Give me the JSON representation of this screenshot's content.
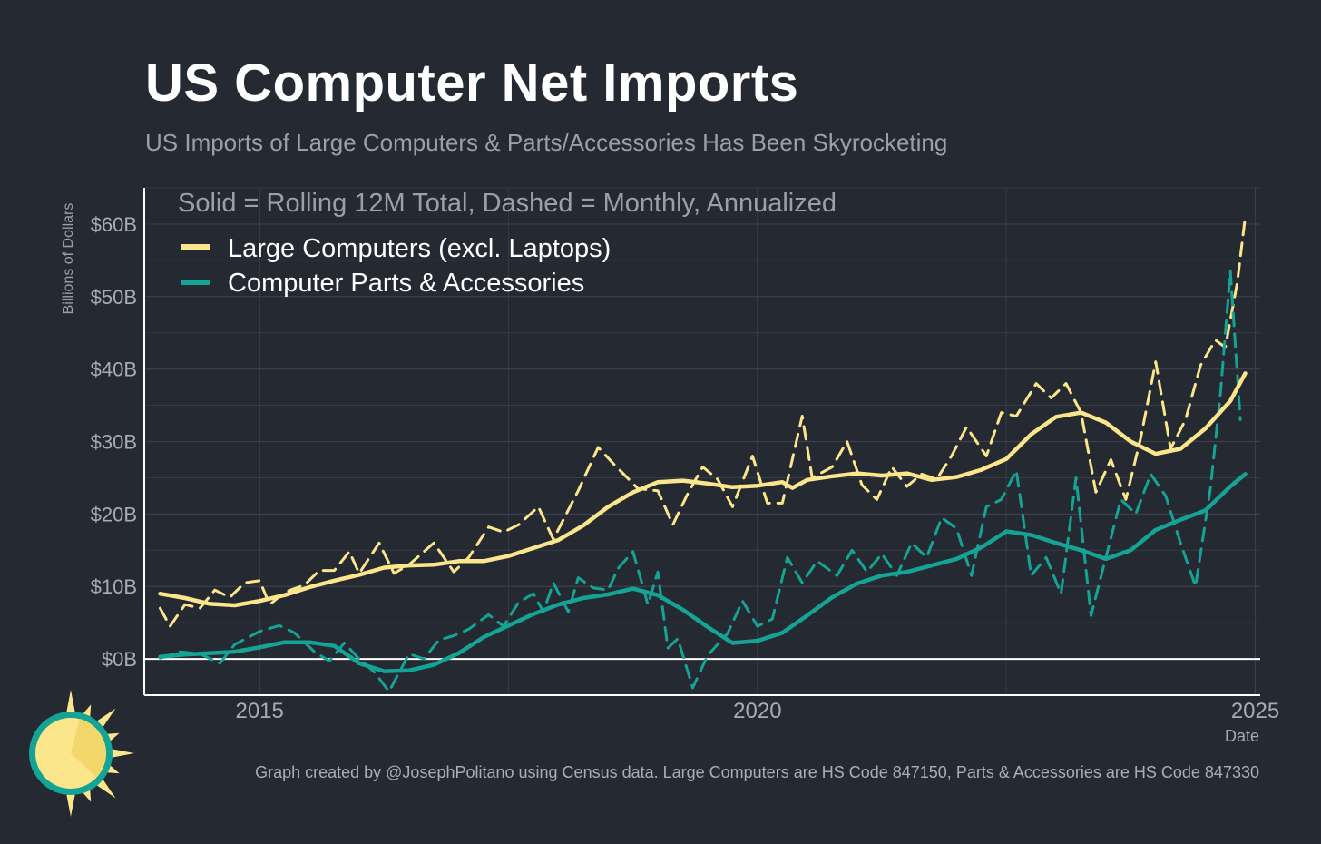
{
  "header": {
    "title": "US Computer Net Imports",
    "subtitle": "US Imports of Large Computers & Parts/Accessories Has Been Skyrocketing"
  },
  "footer": {
    "caption": "Graph created by @JosephPolitano using Census data. Large Computers are HS Code 847150, Parts & Accessories are HS Code 847330"
  },
  "colors": {
    "background": "#252932",
    "large_computers": "#fce68c",
    "parts_accessories": "#14a394",
    "grid": "#3a3f49",
    "axis_text": "#a7acb4",
    "zero_line": "#ffffff"
  },
  "chart_data": {
    "type": "line",
    "title": "US Computer Net Imports",
    "subtitle": "US Imports of Large Computers & Parts/Accessories Has Been Skyrocketing",
    "annotation": "Solid = Rolling 12M Total, Dashed = Monthly, Annualized",
    "xlabel": "Date",
    "ylabel": "Billions of Dollars",
    "xlim": [
      2013.85,
      2025.05
    ],
    "ylim": [
      -5,
      65
    ],
    "x_ticks": [
      2015,
      2020,
      2025
    ],
    "x_tick_labels": [
      "2015",
      "2020",
      "2025"
    ],
    "y_ticks": [
      0,
      10,
      20,
      30,
      40,
      50,
      60
    ],
    "y_tick_labels": [
      "$0B",
      "$10B",
      "$20B",
      "$30B",
      "$40B",
      "$50B",
      "$60B"
    ],
    "grid": true,
    "legend_position": "top-left",
    "series": [
      {
        "name": "Large Computers (excl. Laptops)",
        "style": "solid",
        "color": "#fce68c",
        "points": [
          [
            2014.0,
            9.0
          ],
          [
            2014.25,
            8.4
          ],
          [
            2014.5,
            7.6
          ],
          [
            2014.75,
            7.4
          ],
          [
            2015.0,
            8.0
          ],
          [
            2015.25,
            8.8
          ],
          [
            2015.5,
            9.9
          ],
          [
            2015.75,
            10.8
          ],
          [
            2016.0,
            11.6
          ],
          [
            2016.25,
            12.6
          ],
          [
            2016.5,
            12.9
          ],
          [
            2016.75,
            13.0
          ],
          [
            2017.0,
            13.5
          ],
          [
            2017.25,
            13.5
          ],
          [
            2017.5,
            14.2
          ],
          [
            2017.75,
            15.3
          ],
          [
            2018.0,
            16.4
          ],
          [
            2018.25,
            18.4
          ],
          [
            2018.5,
            21.0
          ],
          [
            2018.75,
            23.0
          ],
          [
            2019.0,
            24.4
          ],
          [
            2019.25,
            24.6
          ],
          [
            2019.5,
            24.2
          ],
          [
            2019.75,
            23.7
          ],
          [
            2020.0,
            23.9
          ],
          [
            2020.25,
            24.4
          ],
          [
            2020.35,
            23.6
          ],
          [
            2020.5,
            24.7
          ],
          [
            2020.75,
            25.2
          ],
          [
            2021.0,
            25.6
          ],
          [
            2021.25,
            25.3
          ],
          [
            2021.5,
            25.6
          ],
          [
            2021.75,
            24.7
          ],
          [
            2022.0,
            25.1
          ],
          [
            2022.25,
            26.1
          ],
          [
            2022.5,
            27.6
          ],
          [
            2022.75,
            31.0
          ],
          [
            2023.0,
            33.4
          ],
          [
            2023.25,
            34.0
          ],
          [
            2023.5,
            32.6
          ],
          [
            2023.75,
            30.0
          ],
          [
            2024.0,
            28.3
          ],
          [
            2024.25,
            29.0
          ],
          [
            2024.5,
            31.8
          ],
          [
            2024.75,
            35.6
          ],
          [
            2024.9,
            39.4
          ]
        ]
      },
      {
        "name": "Computer Parts & Accessories",
        "style": "solid",
        "color": "#14a394",
        "points": [
          [
            2014.0,
            0.3
          ],
          [
            2014.25,
            0.6
          ],
          [
            2014.5,
            0.8
          ],
          [
            2014.75,
            1.0
          ],
          [
            2015.0,
            1.6
          ],
          [
            2015.25,
            2.3
          ],
          [
            2015.5,
            2.3
          ],
          [
            2015.75,
            1.8
          ],
          [
            2016.0,
            -0.6
          ],
          [
            2016.25,
            -1.7
          ],
          [
            2016.5,
            -1.6
          ],
          [
            2016.75,
            -0.8
          ],
          [
            2017.0,
            0.8
          ],
          [
            2017.25,
            3.0
          ],
          [
            2017.5,
            4.6
          ],
          [
            2017.75,
            6.2
          ],
          [
            2018.0,
            7.5
          ],
          [
            2018.25,
            8.4
          ],
          [
            2018.5,
            8.9
          ],
          [
            2018.75,
            9.7
          ],
          [
            2019.0,
            8.8
          ],
          [
            2019.25,
            6.8
          ],
          [
            2019.5,
            4.4
          ],
          [
            2019.75,
            2.2
          ],
          [
            2020.0,
            2.5
          ],
          [
            2020.25,
            3.6
          ],
          [
            2020.5,
            6.0
          ],
          [
            2020.75,
            8.5
          ],
          [
            2021.0,
            10.4
          ],
          [
            2021.25,
            11.5
          ],
          [
            2021.5,
            12.0
          ],
          [
            2021.75,
            12.9
          ],
          [
            2022.0,
            13.8
          ],
          [
            2022.25,
            15.4
          ],
          [
            2022.5,
            17.6
          ],
          [
            2022.75,
            17.1
          ],
          [
            2023.0,
            16.0
          ],
          [
            2023.25,
            15.0
          ],
          [
            2023.5,
            13.8
          ],
          [
            2023.75,
            15.0
          ],
          [
            2024.0,
            17.8
          ],
          [
            2024.25,
            19.2
          ],
          [
            2024.5,
            20.5
          ],
          [
            2024.75,
            23.8
          ],
          [
            2024.9,
            25.5
          ]
        ]
      },
      {
        "name": "Large Computers (excl. Laptops)",
        "style": "dashed",
        "color": "#fce68c",
        "points": [
          [
            2014.0,
            7.0
          ],
          [
            2014.1,
            4.5
          ],
          [
            2014.25,
            7.5
          ],
          [
            2014.4,
            7.0
          ],
          [
            2014.55,
            9.5
          ],
          [
            2014.7,
            8.5
          ],
          [
            2014.85,
            10.5
          ],
          [
            2015.0,
            10.8
          ],
          [
            2015.1,
            7.5
          ],
          [
            2015.25,
            9.2
          ],
          [
            2015.45,
            10.2
          ],
          [
            2015.6,
            12.2
          ],
          [
            2015.75,
            12.2
          ],
          [
            2015.9,
            14.8
          ],
          [
            2016.0,
            11.8
          ],
          [
            2016.2,
            16.0
          ],
          [
            2016.35,
            11.8
          ],
          [
            2016.5,
            13.0
          ],
          [
            2016.75,
            16.0
          ],
          [
            2016.95,
            12.0
          ],
          [
            2017.1,
            14.0
          ],
          [
            2017.3,
            18.2
          ],
          [
            2017.45,
            17.5
          ],
          [
            2017.6,
            18.5
          ],
          [
            2017.8,
            21.0
          ],
          [
            2017.95,
            16.5
          ],
          [
            2018.05,
            19.2
          ],
          [
            2018.2,
            23.2
          ],
          [
            2018.4,
            29.2
          ],
          [
            2018.55,
            27.0
          ],
          [
            2018.8,
            23.5
          ],
          [
            2019.0,
            23.2
          ],
          [
            2019.15,
            18.5
          ],
          [
            2019.3,
            22.8
          ],
          [
            2019.45,
            26.5
          ],
          [
            2019.6,
            24.8
          ],
          [
            2019.75,
            21.0
          ],
          [
            2019.95,
            28.0
          ],
          [
            2020.1,
            21.5
          ],
          [
            2020.25,
            21.5
          ],
          [
            2020.45,
            33.5
          ],
          [
            2020.55,
            25.0
          ],
          [
            2020.75,
            26.5
          ],
          [
            2020.9,
            30.0
          ],
          [
            2021.05,
            24.0
          ],
          [
            2021.2,
            22.0
          ],
          [
            2021.35,
            26.5
          ],
          [
            2021.5,
            23.8
          ],
          [
            2021.65,
            25.5
          ],
          [
            2021.8,
            24.8
          ],
          [
            2021.95,
            28.0
          ],
          [
            2022.1,
            32.0
          ],
          [
            2022.3,
            28.0
          ],
          [
            2022.45,
            34.0
          ],
          [
            2022.6,
            33.5
          ],
          [
            2022.8,
            38.0
          ],
          [
            2022.95,
            36.0
          ],
          [
            2023.1,
            38.0
          ],
          [
            2023.25,
            34.0
          ],
          [
            2023.4,
            23.0
          ],
          [
            2023.55,
            27.5
          ],
          [
            2023.7,
            22.0
          ],
          [
            2023.85,
            30.5
          ],
          [
            2024.0,
            41.0
          ],
          [
            2024.15,
            29.0
          ],
          [
            2024.3,
            33.0
          ],
          [
            2024.45,
            40.5
          ],
          [
            2024.6,
            44.0
          ],
          [
            2024.7,
            43.0
          ],
          [
            2024.82,
            52.0
          ],
          [
            2024.9,
            61.0
          ]
        ]
      },
      {
        "name": "Computer Parts & Accessories",
        "style": "dashed",
        "color": "#14a394",
        "points": [
          [
            2014.0,
            0.1
          ],
          [
            2014.2,
            1.0
          ],
          [
            2014.4,
            0.7
          ],
          [
            2014.6,
            -0.6
          ],
          [
            2014.75,
            2.0
          ],
          [
            2015.0,
            3.8
          ],
          [
            2015.2,
            4.6
          ],
          [
            2015.35,
            3.6
          ],
          [
            2015.55,
            1.0
          ],
          [
            2015.7,
            -0.3
          ],
          [
            2015.85,
            2.2
          ],
          [
            2016.0,
            0.0
          ],
          [
            2016.15,
            -1.8
          ],
          [
            2016.3,
            -4.5
          ],
          [
            2016.5,
            0.7
          ],
          [
            2016.65,
            0.0
          ],
          [
            2016.8,
            2.6
          ],
          [
            2016.95,
            3.2
          ],
          [
            2017.1,
            4.1
          ],
          [
            2017.3,
            6.1
          ],
          [
            2017.45,
            4.5
          ],
          [
            2017.6,
            7.8
          ],
          [
            2017.75,
            9.0
          ],
          [
            2017.85,
            6.5
          ],
          [
            2017.95,
            10.5
          ],
          [
            2018.1,
            6.5
          ],
          [
            2018.2,
            11.2
          ],
          [
            2018.35,
            9.8
          ],
          [
            2018.5,
            9.5
          ],
          [
            2018.6,
            12.5
          ],
          [
            2018.75,
            14.8
          ],
          [
            2018.9,
            7.5
          ],
          [
            2019.0,
            12.0
          ],
          [
            2019.1,
            1.5
          ],
          [
            2019.2,
            2.8
          ],
          [
            2019.35,
            -4.0
          ],
          [
            2019.5,
            0.5
          ],
          [
            2019.7,
            3.5
          ],
          [
            2019.85,
            8.0
          ],
          [
            2020.0,
            4.5
          ],
          [
            2020.15,
            5.5
          ],
          [
            2020.3,
            14.0
          ],
          [
            2020.45,
            10.5
          ],
          [
            2020.6,
            13.5
          ],
          [
            2020.8,
            11.5
          ],
          [
            2020.95,
            15.0
          ],
          [
            2021.1,
            12.0
          ],
          [
            2021.25,
            14.5
          ],
          [
            2021.4,
            11.5
          ],
          [
            2021.55,
            16.0
          ],
          [
            2021.7,
            14.0
          ],
          [
            2021.85,
            19.5
          ],
          [
            2022.0,
            18.0
          ],
          [
            2022.15,
            11.5
          ],
          [
            2022.3,
            21.0
          ],
          [
            2022.45,
            22.0
          ],
          [
            2022.6,
            26.0
          ],
          [
            2022.75,
            11.5
          ],
          [
            2022.9,
            14.0
          ],
          [
            2023.05,
            9.0
          ],
          [
            2023.2,
            25.0
          ],
          [
            2023.35,
            6.0
          ],
          [
            2023.5,
            14.0
          ],
          [
            2023.65,
            22.0
          ],
          [
            2023.8,
            20.0
          ],
          [
            2023.95,
            25.5
          ],
          [
            2024.1,
            22.5
          ],
          [
            2024.25,
            16.0
          ],
          [
            2024.4,
            10.0
          ],
          [
            2024.55,
            23.5
          ],
          [
            2024.65,
            36.5
          ],
          [
            2024.75,
            53.5
          ],
          [
            2024.85,
            33.0
          ]
        ]
      }
    ]
  }
}
